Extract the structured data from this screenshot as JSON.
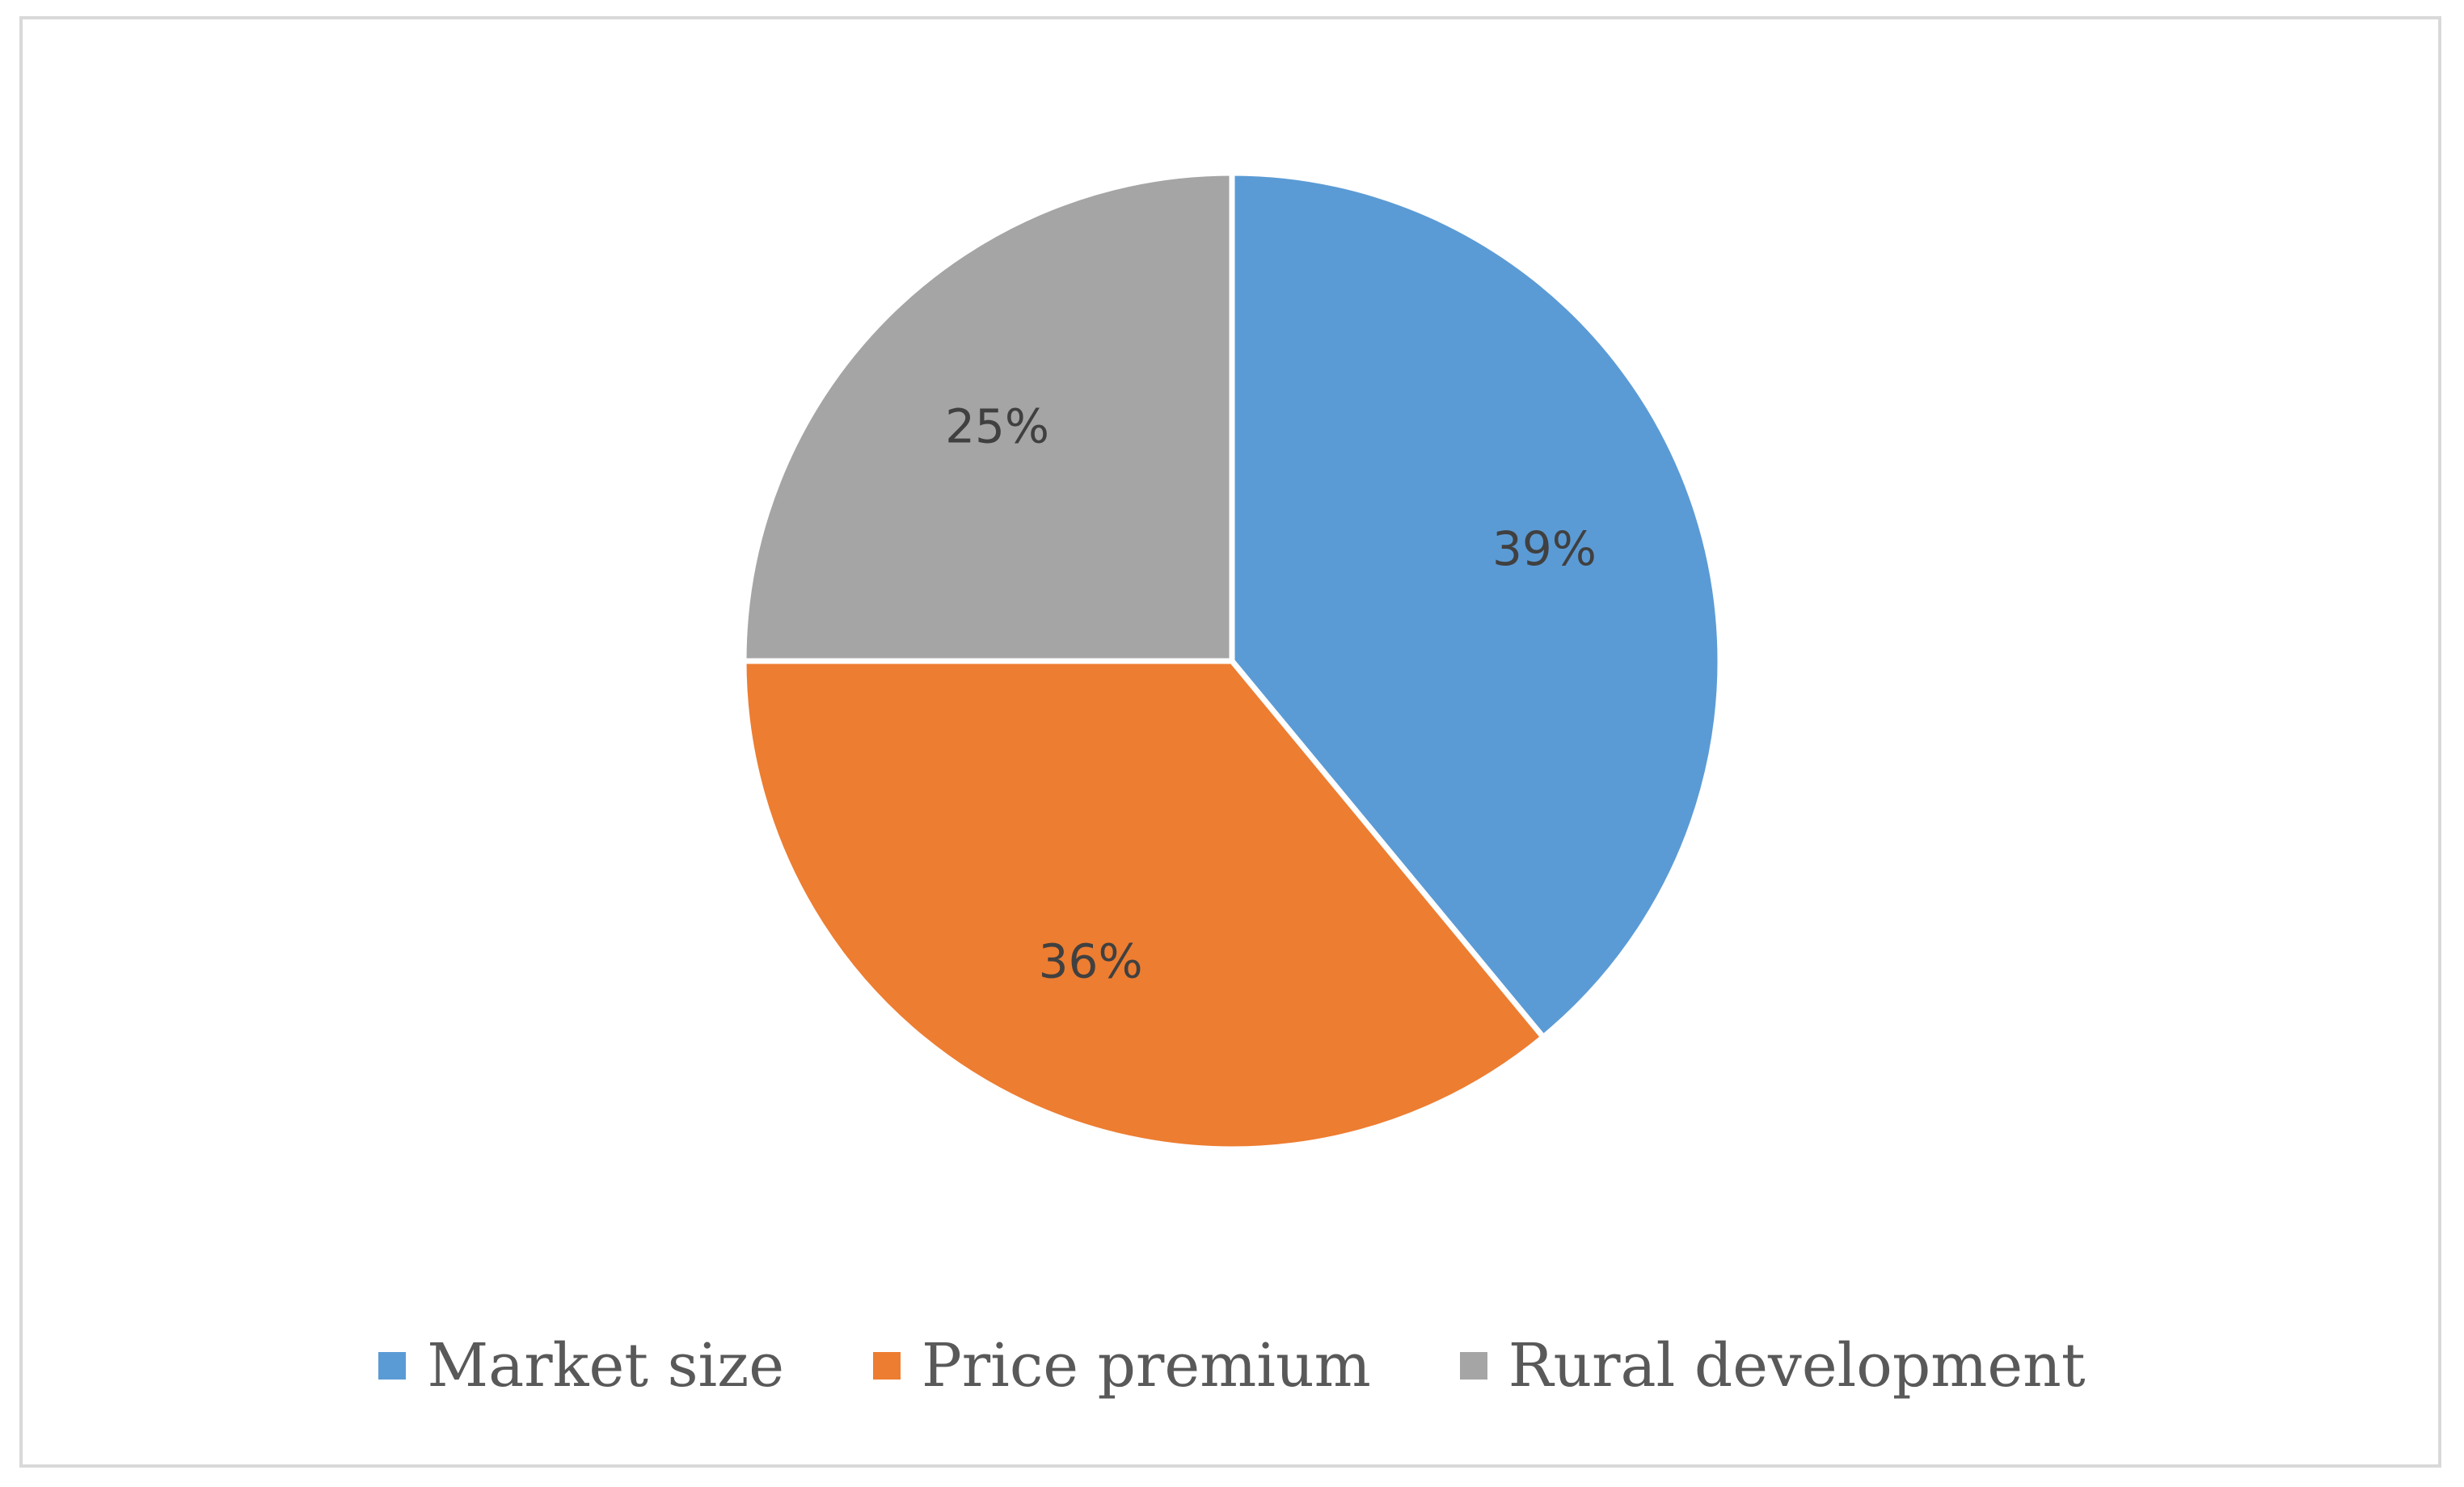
{
  "chart_data": {
    "type": "pie",
    "title": "",
    "start_angle_deg": 0,
    "direction": "clockwise",
    "legend_position": "bottom",
    "slices": [
      {
        "label": "Market size",
        "value": 39,
        "display": "39%",
        "color": "#5b9bd5"
      },
      {
        "label": "Price premium",
        "value": 36,
        "display": "36%",
        "color": "#ed7d31"
      },
      {
        "label": "Rural development",
        "value": 25,
        "display": "25%",
        "color": "#a5a5a5"
      }
    ]
  }
}
